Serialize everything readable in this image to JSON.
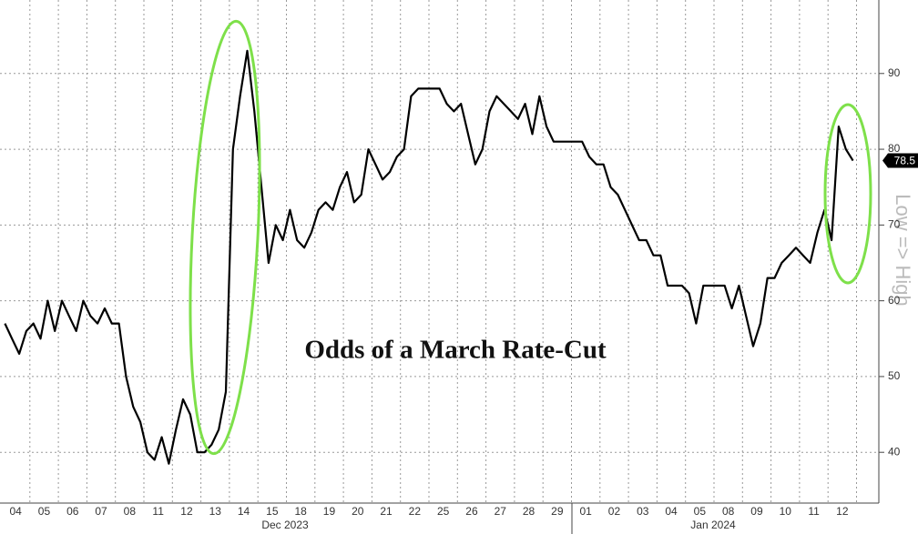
{
  "chart_data": {
    "type": "line",
    "title": "Odds of a March Rate-Cut",
    "y_axis_label": "Low => High",
    "x_group_labels": [
      "Dec 2023",
      "Jan 2024"
    ],
    "categories": [
      "04",
      null,
      null,
      null,
      "05",
      null,
      null,
      null,
      "06",
      null,
      null,
      null,
      "07",
      null,
      null,
      null,
      "08",
      null,
      null,
      null,
      "11",
      null,
      null,
      null,
      "12",
      null,
      null,
      null,
      "13",
      null,
      null,
      null,
      "14",
      null,
      null,
      null,
      "15",
      null,
      null,
      null,
      "18",
      null,
      null,
      null,
      "19",
      null,
      null,
      null,
      "20",
      null,
      null,
      null,
      "21",
      null,
      null,
      null,
      "22",
      null,
      null,
      null,
      "25",
      null,
      null,
      null,
      "26",
      null,
      null,
      null,
      "27",
      null,
      null,
      null,
      "28",
      null,
      null,
      null,
      "29",
      null,
      null,
      null,
      "01",
      null,
      null,
      null,
      "02",
      null,
      null,
      null,
      "03",
      null,
      null,
      null,
      "04",
      null,
      null,
      null,
      "05",
      null,
      null,
      null,
      "08",
      null,
      null,
      null,
      "09",
      null,
      null,
      null,
      "10",
      null,
      null,
      null,
      "11",
      null,
      null,
      null,
      "12",
      null,
      null,
      null
    ],
    "values": [
      57,
      55,
      53,
      56,
      57,
      55,
      60,
      56,
      60,
      58,
      56,
      60,
      58,
      57,
      59,
      57,
      57,
      50,
      46,
      44,
      40,
      39,
      42,
      38.5,
      43,
      47,
      45,
      40,
      40,
      41,
      43,
      48,
      80,
      87,
      93,
      85,
      75,
      65,
      70,
      68,
      72,
      68,
      67,
      69,
      72,
      73,
      72,
      75,
      77,
      73,
      74,
      80,
      78,
      76,
      77,
      79,
      80,
      87,
      88,
      88,
      88,
      88,
      86,
      85,
      86,
      82,
      78,
      80,
      85,
      87,
      86,
      85,
      84,
      86,
      82,
      87,
      83,
      81,
      81,
      81,
      81,
      81,
      79,
      78,
      78,
      75,
      74,
      72,
      70,
      68,
      68,
      66,
      66,
      62,
      62,
      62,
      61,
      57,
      62,
      62,
      62,
      62,
      59,
      62,
      58,
      54,
      57,
      63,
      63,
      65,
      66,
      67,
      66,
      65,
      69,
      72,
      68,
      83,
      80,
      78.5
    ],
    "color": "#000000",
    "ylim": [
      33.3,
      99.7
    ],
    "yticks": [
      40,
      50,
      60,
      70,
      80,
      90
    ],
    "grid": true
  }
}
